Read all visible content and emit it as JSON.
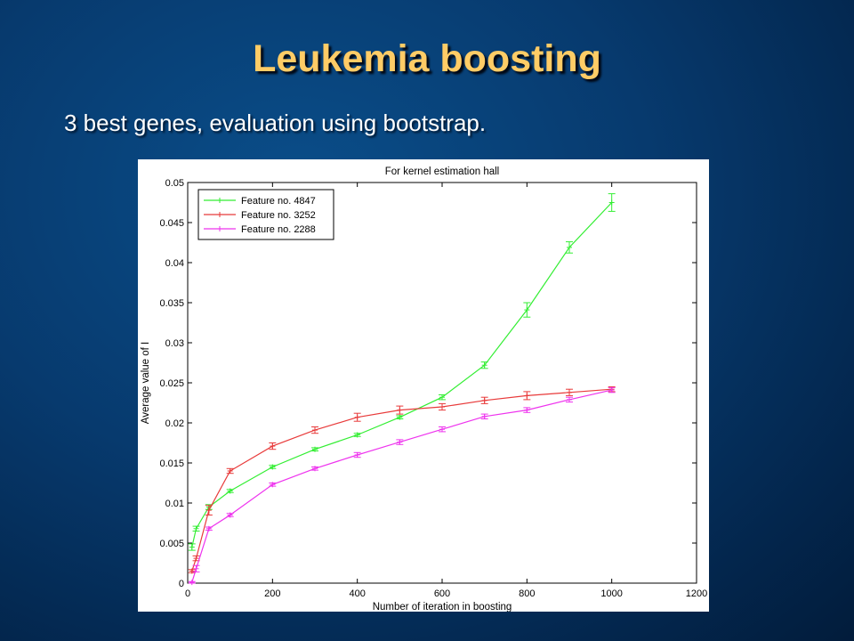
{
  "slide": {
    "title": "Leukemia boosting",
    "subtitle": "3 best genes, evaluation using bootstrap."
  },
  "chart_data": {
    "type": "line",
    "title": "For kernel estimation hall",
    "xlabel": "Number of iteration in boosting",
    "ylabel": "Average value of I",
    "xlim": [
      0,
      1200
    ],
    "ylim": [
      0,
      0.05
    ],
    "xticks": [
      0,
      200,
      400,
      600,
      800,
      1000,
      1200
    ],
    "yticks": [
      0,
      0.005,
      0.01,
      0.015,
      0.02,
      0.025,
      0.03,
      0.035,
      0.04,
      0.045,
      0.05
    ],
    "xtick_labels": [
      "0",
      "200",
      "400",
      "600",
      "800",
      "1000",
      "1200"
    ],
    "ytick_labels": [
      "0",
      "0.005",
      "0.01",
      "0.015",
      "0.02",
      "0.025",
      "0.03",
      "0.035",
      "0.04",
      "0.045",
      "0.05"
    ],
    "grid": false,
    "legend_position": "top-left",
    "x": [
      10,
      20,
      50,
      100,
      200,
      300,
      400,
      500,
      600,
      700,
      800,
      900,
      1000
    ],
    "series": [
      {
        "name": "Feature no. 4847",
        "color": "#33ee33",
        "values": [
          0.0045,
          0.0068,
          0.0095,
          0.0115,
          0.0145,
          0.0167,
          0.0185,
          0.0207,
          0.0232,
          0.0272,
          0.0341,
          0.0419,
          0.0475
        ],
        "errors": [
          0.0004,
          0.0003,
          0.0003,
          0.0002,
          0.0002,
          0.0002,
          0.0002,
          0.0002,
          0.0003,
          0.0004,
          0.0009,
          0.0007,
          0.0011
        ]
      },
      {
        "name": "Feature no. 3252",
        "color": "#e83a3a",
        "values": [
          0.0015,
          0.0031,
          0.0091,
          0.014,
          0.0171,
          0.0191,
          0.0207,
          0.0216,
          0.022,
          0.0228,
          0.0234,
          0.0238,
          0.0242
        ],
        "errors": [
          0.0002,
          0.0003,
          0.0006,
          0.0003,
          0.0004,
          0.0004,
          0.0005,
          0.0005,
          0.0004,
          0.0004,
          0.0005,
          0.0004,
          0.0003
        ]
      },
      {
        "name": "Feature no. 2288",
        "color": "#ee33ee",
        "values": [
          0.0001,
          0.0018,
          0.0068,
          0.0085,
          0.0123,
          0.0143,
          0.016,
          0.0176,
          0.0192,
          0.0208,
          0.0216,
          0.0229,
          0.0241
        ],
        "errors": [
          0.0001,
          0.0004,
          0.0002,
          0.0002,
          0.0002,
          0.0002,
          0.0003,
          0.0003,
          0.0003,
          0.0003,
          0.0003,
          0.0003,
          0.0003
        ]
      }
    ]
  }
}
